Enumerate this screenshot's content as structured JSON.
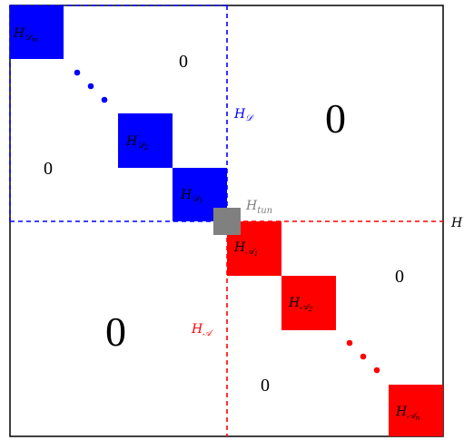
{
  "colors": {
    "donor": "#0000ff",
    "acceptor": "#ff0000",
    "tunnel": "#808080",
    "frame": "#000000"
  },
  "blocks": {
    "donor": [
      {
        "base": "H",
        "sub": "𝒟",
        "subsub": "m"
      },
      {
        "base": "H",
        "sub": "𝒟",
        "subsub": "2"
      },
      {
        "base": "H",
        "sub": "𝒟",
        "subsub": "1"
      }
    ],
    "tunnel": {
      "base": "H",
      "sub": "tun"
    },
    "acceptor": [
      {
        "base": "H",
        "sub": "𝒜",
        "subsub": "1"
      },
      {
        "base": "H",
        "sub": "𝒜",
        "subsub": "2"
      },
      {
        "base": "H",
        "sub": "𝒜",
        "subsub": "n"
      }
    ]
  },
  "region_labels": {
    "donor": {
      "base": "H",
      "sub": "𝒟"
    },
    "acceptor": {
      "base": "H",
      "sub": "𝒜"
    },
    "clipped_right": "H"
  },
  "zeros": {
    "donor_inner_top": "0",
    "donor_inner_left": "0",
    "offdiag_top_right": "0",
    "offdiag_bottom_left": "0",
    "acceptor_inner_right": "0",
    "acceptor_inner_bottom": "0"
  }
}
